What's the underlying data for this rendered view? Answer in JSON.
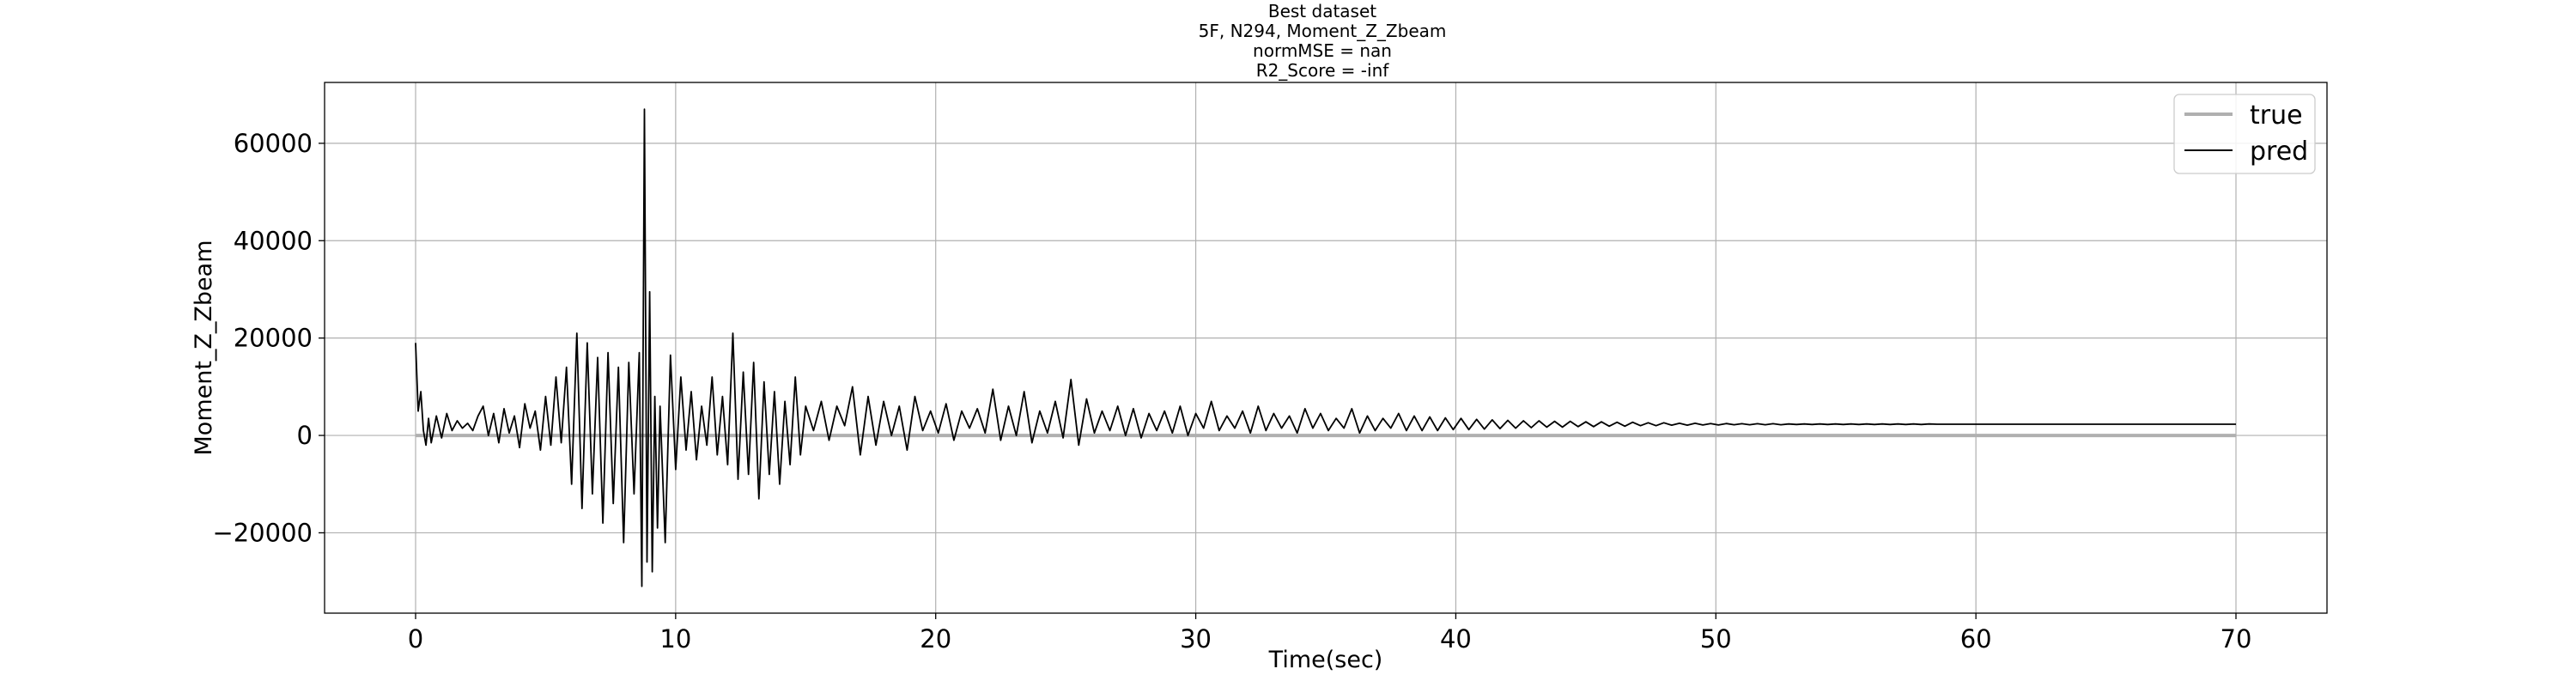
{
  "chart_data": {
    "type": "line",
    "title_lines": [
      "Best dataset",
      "5F, N294, Moment_Z_Zbeam",
      "normMSE = nan",
      "R2_Score = -inf"
    ],
    "xlabel": "Time(sec)",
    "ylabel": "Moment_Z_Zbeam",
    "xlim": [
      -3.5,
      73.5
    ],
    "ylim": [
      -36500,
      72500
    ],
    "xticks": [
      0,
      10,
      20,
      30,
      40,
      50,
      60,
      70
    ],
    "yticks": [
      -20000,
      0,
      20000,
      40000,
      60000
    ],
    "ytick_labels": [
      "−20000",
      "0",
      "20000",
      "40000",
      "60000"
    ],
    "grid": true,
    "legend_position": "top-right",
    "series": [
      {
        "name": "true",
        "color": "#b0b0b0",
        "x": [
          0,
          70
        ],
        "y": [
          0,
          0
        ]
      },
      {
        "name": "pred",
        "color": "#000000",
        "x": [
          0.0,
          0.1,
          0.2,
          0.3,
          0.4,
          0.5,
          0.6,
          0.8,
          1.0,
          1.2,
          1.4,
          1.6,
          1.8,
          2.0,
          2.2,
          2.4,
          2.6,
          2.8,
          3.0,
          3.2,
          3.4,
          3.6,
          3.8,
          4.0,
          4.2,
          4.4,
          4.6,
          4.8,
          5.0,
          5.2,
          5.4,
          5.6,
          5.8,
          6.0,
          6.2,
          6.4,
          6.6,
          6.8,
          7.0,
          7.2,
          7.4,
          7.6,
          7.8,
          8.0,
          8.2,
          8.4,
          8.6,
          8.7,
          8.8,
          8.9,
          9.0,
          9.1,
          9.2,
          9.3,
          9.4,
          9.6,
          9.8,
          10.0,
          10.2,
          10.4,
          10.6,
          10.8,
          11.0,
          11.2,
          11.4,
          11.6,
          11.8,
          12.0,
          12.2,
          12.4,
          12.6,
          12.8,
          13.0,
          13.2,
          13.4,
          13.6,
          13.8,
          14.0,
          14.2,
          14.4,
          14.6,
          14.8,
          15.0,
          15.3,
          15.6,
          15.9,
          16.2,
          16.5,
          16.8,
          17.1,
          17.4,
          17.7,
          18.0,
          18.3,
          18.6,
          18.9,
          19.2,
          19.5,
          19.8,
          20.1,
          20.4,
          20.7,
          21.0,
          21.3,
          21.6,
          21.9,
          22.2,
          22.5,
          22.8,
          23.1,
          23.4,
          23.7,
          24.0,
          24.3,
          24.6,
          24.9,
          25.2,
          25.5,
          25.8,
          26.1,
          26.4,
          26.7,
          27.0,
          27.3,
          27.6,
          27.9,
          28.2,
          28.5,
          28.8,
          29.1,
          29.4,
          29.7,
          30.0,
          30.3,
          30.6,
          30.9,
          31.2,
          31.5,
          31.8,
          32.1,
          32.4,
          32.7,
          33.0,
          33.3,
          33.6,
          33.9,
          34.2,
          34.5,
          34.8,
          35.1,
          35.4,
          35.7,
          36.0,
          36.3,
          36.6,
          36.9,
          37.2,
          37.5,
          37.8,
          38.1,
          38.4,
          38.7,
          39.0,
          39.3,
          39.6,
          39.9,
          40.2,
          40.5,
          40.8,
          41.1,
          41.4,
          41.7,
          42.0,
          42.3,
          42.6,
          42.9,
          43.2,
          43.5,
          43.8,
          44.1,
          44.4,
          44.7,
          45.0,
          45.3,
          45.6,
          45.9,
          46.2,
          46.5,
          46.8,
          47.1,
          47.4,
          47.7,
          48.0,
          48.3,
          48.6,
          48.9,
          49.2,
          49.5,
          49.8,
          50.1,
          50.4,
          50.7,
          51.0,
          51.3,
          51.6,
          51.9,
          52.2,
          52.5,
          52.8,
          53.1,
          53.4,
          53.7,
          54.0,
          54.3,
          54.6,
          54.9,
          55.2,
          55.5,
          55.8,
          56.1,
          56.4,
          56.7,
          57.0,
          57.3,
          57.6,
          57.9,
          58.2,
          58.5,
          58.8,
          59.1,
          59.4,
          59.7,
          60.0,
          61.0,
          62.0,
          63.0,
          64.0,
          65.0,
          66.0,
          67.0,
          68.0,
          69.0,
          70.0
        ],
        "y": [
          19000,
          5000,
          9000,
          1000,
          -2000,
          3500,
          -1500,
          4000,
          -500,
          4500,
          1000,
          3000,
          1500,
          2500,
          1000,
          4000,
          6000,
          0,
          4500,
          -1500,
          5500,
          500,
          4000,
          -2500,
          6500,
          1500,
          5000,
          -3000,
          8000,
          -2000,
          12000,
          -1500,
          14000,
          -10000,
          21000,
          -15000,
          19000,
          -12000,
          16000,
          -18000,
          17000,
          -14000,
          14000,
          -22000,
          15000,
          -12000,
          17000,
          -31000,
          67000,
          -26000,
          29500,
          -28000,
          8000,
          -19000,
          6000,
          -22000,
          16500,
          -7000,
          12000,
          -3000,
          9000,
          -5000,
          6000,
          -2000,
          12000,
          -4000,
          8000,
          -6000,
          21000,
          -9000,
          13000,
          -8000,
          15000,
          -13000,
          11000,
          -8000,
          9000,
          -10000,
          7000,
          -6000,
          12000,
          -4000,
          6000,
          1000,
          7000,
          -1000,
          6000,
          2000,
          10000,
          -4000,
          8000,
          -2000,
          7000,
          0,
          6000,
          -3000,
          8000,
          1000,
          5000,
          500,
          6500,
          -1000,
          5000,
          1500,
          5500,
          500,
          9500,
          -1000,
          6000,
          0,
          9000,
          -1500,
          5000,
          500,
          7000,
          -500,
          11500,
          -2000,
          7500,
          500,
          5000,
          1000,
          6000,
          0,
          5500,
          -500,
          4500,
          1000,
          5000,
          500,
          6000,
          0,
          4500,
          1500,
          7000,
          1000,
          4000,
          1500,
          5000,
          500,
          6000,
          1000,
          4500,
          1500,
          4000,
          500,
          5500,
          1500,
          4500,
          1000,
          3500,
          1500,
          5500,
          500,
          4000,
          1000,
          3500,
          1500,
          4500,
          1000,
          4000,
          1000,
          3800,
          1000,
          3600,
          1200,
          3500,
          1200,
          3300,
          1300,
          3200,
          1400,
          3100,
          1500,
          3000,
          1600,
          3000,
          1700,
          2900,
          1700,
          2900,
          1800,
          2800,
          1800,
          2800,
          1900,
          2700,
          1900,
          2700,
          2000,
          2600,
          2000,
          2600,
          2100,
          2500,
          2100,
          2500,
          2150,
          2450,
          2150,
          2450,
          2200,
          2400,
          2200,
          2400,
          2200,
          2400,
          2200,
          2350,
          2250,
          2350,
          2250,
          2350,
          2250,
          2350,
          2250,
          2350,
          2250,
          2350,
          2250,
          2350,
          2250,
          2350,
          2250,
          2350,
          2250,
          2350,
          2300,
          2300,
          2300,
          2300,
          2300,
          2300,
          2300,
          2300,
          2300,
          2300,
          2300,
          2300,
          2300,
          2300,
          2300,
          2300
        ]
      }
    ]
  }
}
